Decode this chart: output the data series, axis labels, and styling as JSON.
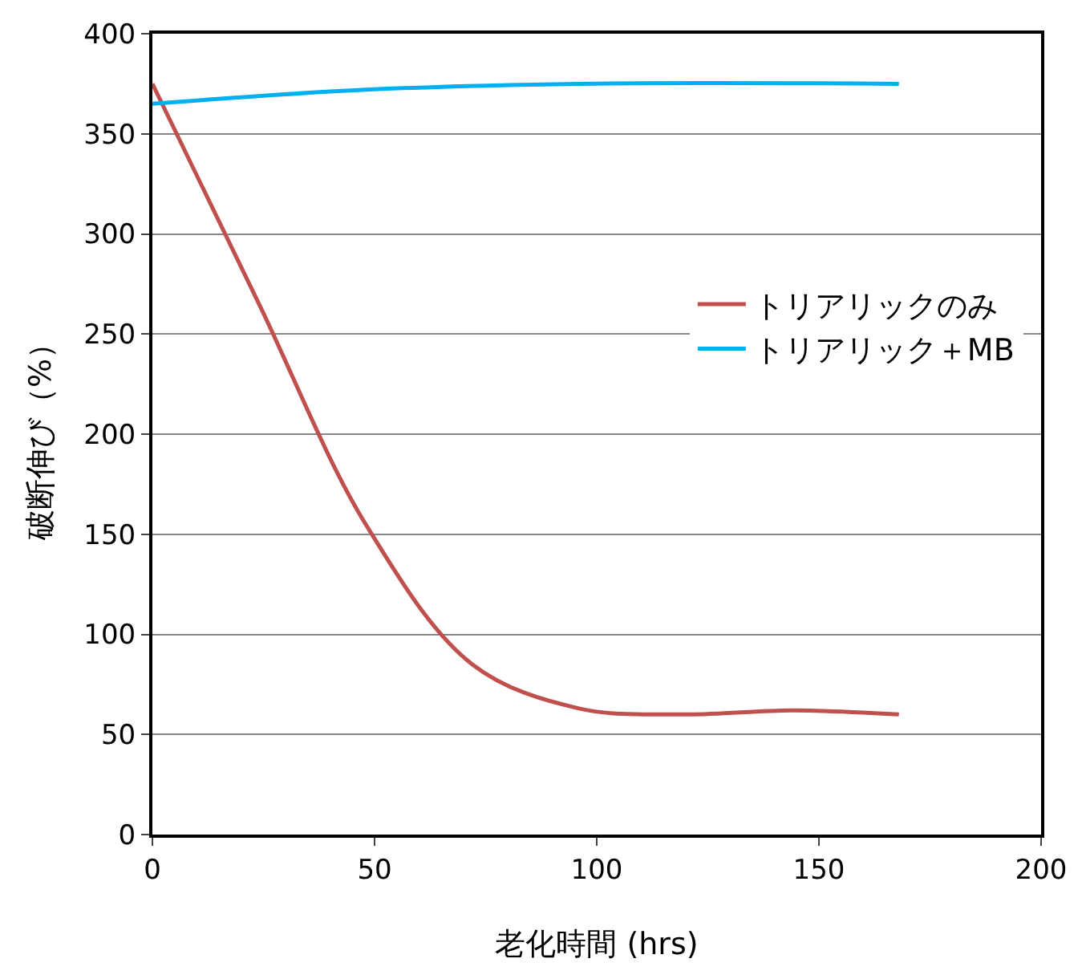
{
  "chart_data": {
    "type": "line",
    "xlabel": "老化時間 (hrs)",
    "ylabel": "破断伸び（%）",
    "xlim": [
      0,
      200
    ],
    "xticks": [
      0,
      50,
      100,
      150,
      200
    ],
    "ylim": [
      0,
      400
    ],
    "yticks": [
      0,
      50,
      100,
      150,
      200,
      250,
      300,
      350,
      400
    ],
    "grid": "y",
    "legend": "top right",
    "marker": "none",
    "line_style": "solid",
    "series": [
      {
        "name": "トリアリックのみ",
        "color": "#c0504d",
        "x": [
          0,
          24,
          48,
          72,
          96,
          120,
          144,
          168
        ],
        "values": [
          375,
          265,
          155,
          85,
          63,
          60,
          62,
          60
        ]
      },
      {
        "name": "トリアリック＋MB",
        "color": "#00b0f0",
        "x": [
          0,
          48,
          96,
          168
        ],
        "values": [
          365,
          372,
          375,
          375
        ]
      }
    ]
  }
}
